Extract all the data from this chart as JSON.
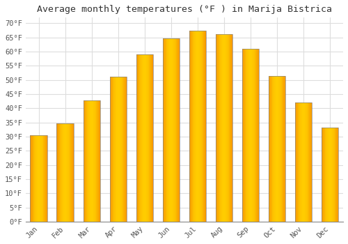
{
  "title": "Average monthly temperatures (°F ) in Marija Bistrica",
  "months": [
    "Jan",
    "Feb",
    "Mar",
    "Apr",
    "May",
    "Jun",
    "Jul",
    "Aug",
    "Sep",
    "Oct",
    "Nov",
    "Dec"
  ],
  "values": [
    30.5,
    34.7,
    42.8,
    51.1,
    59.0,
    64.6,
    67.3,
    66.2,
    61.0,
    51.3,
    42.1,
    33.1
  ],
  "bar_color_center": "#FFB300",
  "bar_color_edge": "#F59300",
  "bar_outline_color": "#888888",
  "ylim": [
    0,
    72
  ],
  "yticks": [
    0,
    5,
    10,
    15,
    20,
    25,
    30,
    35,
    40,
    45,
    50,
    55,
    60,
    65,
    70
  ],
  "ytick_labels": [
    "0°F",
    "5°F",
    "10°F",
    "15°F",
    "20°F",
    "25°F",
    "30°F",
    "35°F",
    "40°F",
    "45°F",
    "50°F",
    "55°F",
    "60°F",
    "65°F",
    "70°F"
  ],
  "background_color": "#ffffff",
  "grid_color": "#dddddd",
  "title_fontsize": 9.5,
  "tick_fontsize": 7.5,
  "font_family": "monospace",
  "bar_width": 0.65
}
